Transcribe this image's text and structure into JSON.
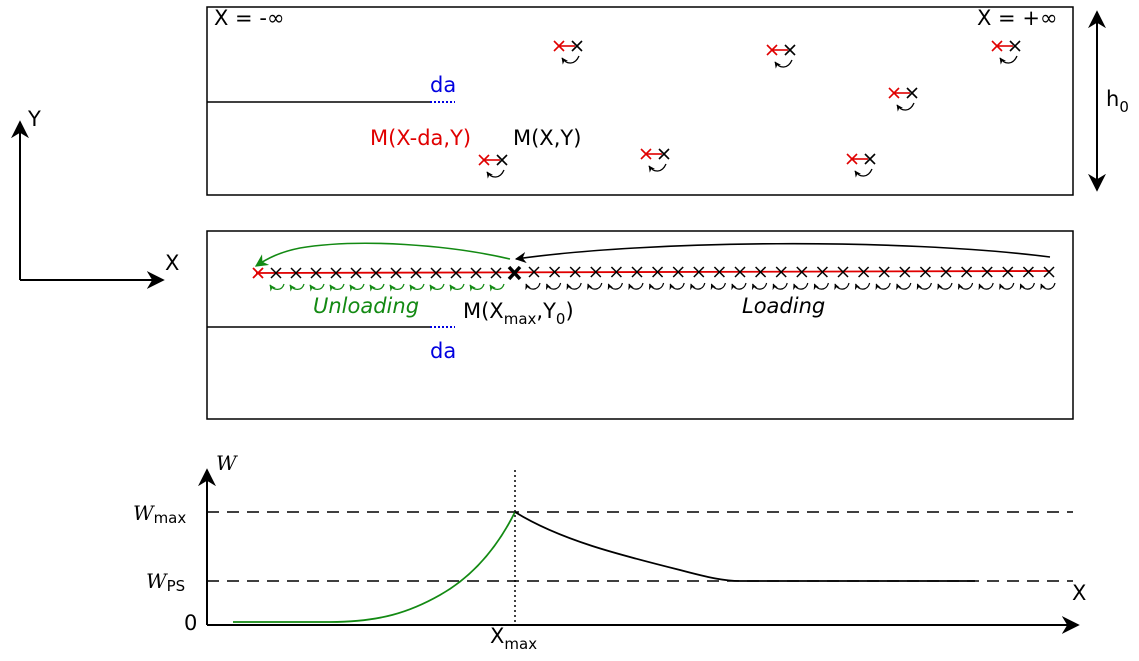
{
  "panel_top": {
    "left_limit": "X = -∞",
    "right_limit": "X = +∞",
    "height_label": "h",
    "height_sub": "0",
    "da_label": "da",
    "point_shifted": "M(X-da,Y)",
    "point_current": "M(X,Y)"
  },
  "axes_icon": {
    "y_label": "Y",
    "x_label": "X"
  },
  "panel_middle": {
    "unloading_label": "Unloading",
    "loading_label": "Loading",
    "point_main": "M(X",
    "point_sub1": "max",
    "point_mid": ",Y",
    "point_sub2": "0",
    "point_end": ")",
    "da_label": "da"
  },
  "energy_plot": {
    "y_axis_symbol": "W",
    "w_max_main": "W",
    "w_max_sub": "max",
    "w_ps_main": "W",
    "w_ps_sub": "PS",
    "zero_label": "0",
    "x_axis_label": "X",
    "x_max_main": "X",
    "x_max_sub": "max"
  },
  "colors": {
    "red": "#e00000",
    "blue": "#0000e0",
    "green": "#138a13",
    "black": "#000000"
  }
}
